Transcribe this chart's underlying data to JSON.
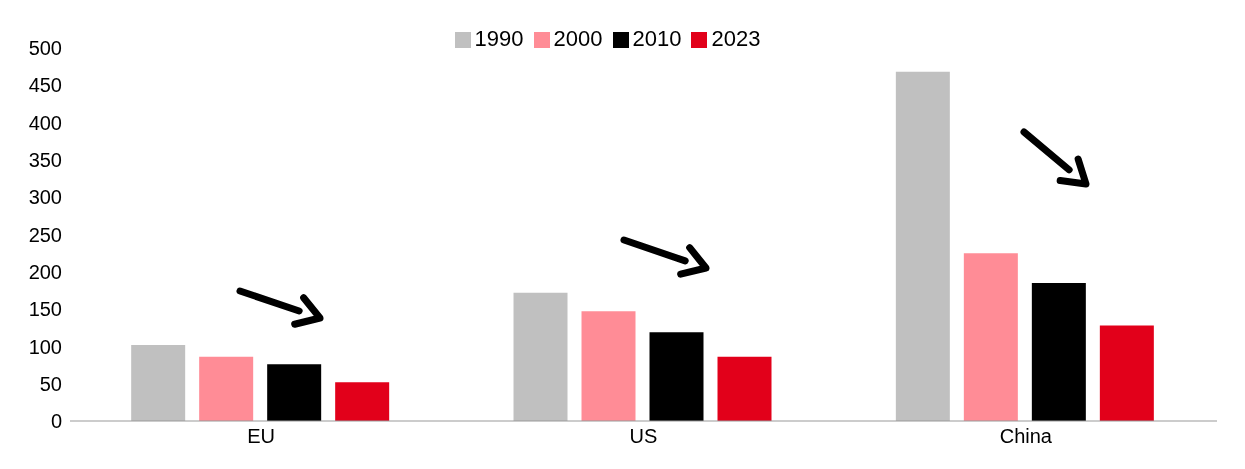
{
  "chart_data": {
    "type": "bar",
    "categories": [
      "EU",
      "US",
      "China"
    ],
    "series": [
      {
        "name": "1990",
        "color": "#c0c0c0",
        "values": [
          102,
          172,
          468
        ]
      },
      {
        "name": "2000",
        "color": "#ff8c96",
        "values": [
          86,
          147,
          225
        ]
      },
      {
        "name": "2010",
        "color": "#000000",
        "values": [
          76,
          119,
          185
        ]
      },
      {
        "name": "2023",
        "color": "#e2001a",
        "values": [
          52,
          86,
          128
        ]
      }
    ],
    "ylim": [
      0,
      500
    ],
    "yticks": [
      0,
      50,
      100,
      150,
      200,
      250,
      300,
      350,
      400,
      450,
      500
    ],
    "grid": false,
    "legend": "top"
  }
}
